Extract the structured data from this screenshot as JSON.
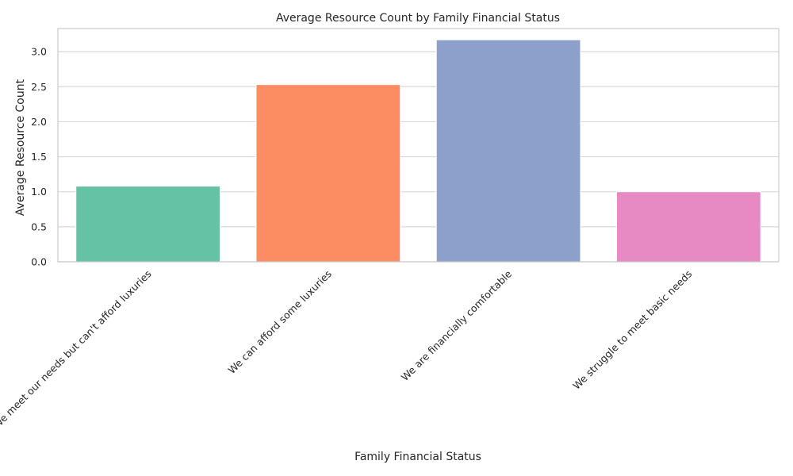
{
  "chart_data": {
    "type": "bar",
    "title": "Average Resource Count by Family Financial Status",
    "xlabel": "Family Financial Status",
    "ylabel": "Average Resource Count",
    "categories": [
      "We meet our needs but can't afford luxuries",
      "We can afford some luxuries",
      "We are financially comfortable",
      "We struggle to meet basic needs"
    ],
    "values": [
      1.08,
      2.53,
      3.17,
      1.0
    ],
    "colors": [
      "#66c2a5",
      "#fc8d62",
      "#8da0cb",
      "#e78ac3"
    ],
    "ylim": [
      0,
      3.33
    ],
    "yticks": [
      "0.0",
      "0.5",
      "1.0",
      "1.5",
      "2.0",
      "2.5",
      "3.0"
    ],
    "grid": true,
    "legend": "none"
  }
}
